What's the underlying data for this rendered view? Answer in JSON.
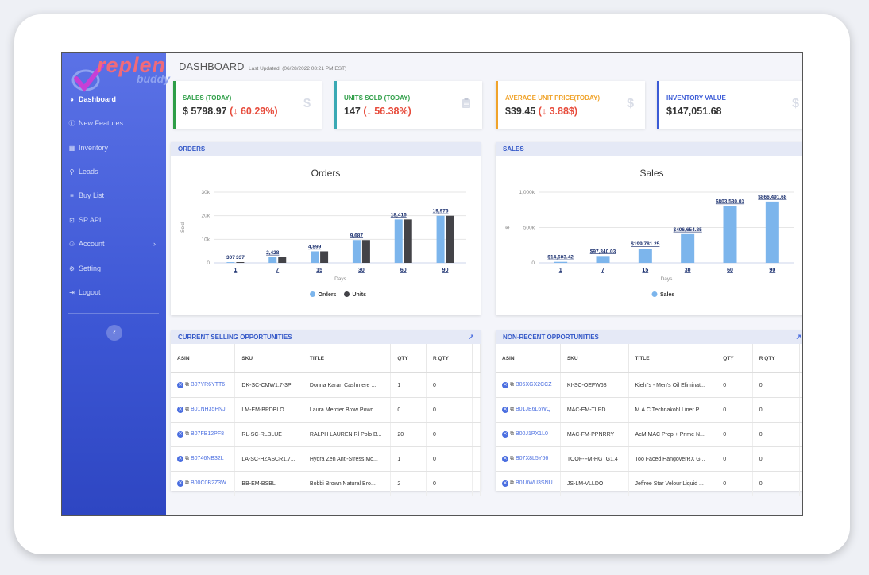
{
  "brand": {
    "logo_text": "replen",
    "logo_sub": "buddy"
  },
  "sidebar": {
    "items": [
      {
        "label": "Dashboard",
        "icon": "dashboard-icon"
      },
      {
        "label": "New Features",
        "icon": "info-icon"
      },
      {
        "label": "Inventory",
        "icon": "inventory-icon"
      },
      {
        "label": "Leads",
        "icon": "location-pin-icon"
      },
      {
        "label": "Buy List",
        "icon": "cart-icon"
      },
      {
        "label": "SP API",
        "icon": "lock-icon"
      },
      {
        "label": "Account",
        "icon": "user-icon"
      },
      {
        "label": "Setting",
        "icon": "gear-icon"
      },
      {
        "label": "Logout",
        "icon": "logout-icon"
      }
    ],
    "collapse_glyph": "‹"
  },
  "header": {
    "title": "DASHBOARD",
    "updated": "Last Updated: (06/28/2022 08:21 PM EST)"
  },
  "kpis": [
    {
      "label": "SALES (TODAY)",
      "value": "$ 5798.97",
      "change": "(↓ 60.29%)",
      "color": "#2e9e47",
      "icon": "$"
    },
    {
      "label": "UNITS SOLD (TODAY)",
      "value": "147",
      "change": "(↓ 56.38%)",
      "color": "#3aa9b4",
      "icon": "clipboard-icon"
    },
    {
      "label": "AVERAGE UNIT PRICE(TODAY)",
      "value": "$39.45",
      "change": "(↓ 3.88$)",
      "color": "#f0a32a",
      "icon": "$"
    },
    {
      "label": "INVENTORY VALUE",
      "value": "$147,051.68",
      "change": "",
      "color": "#3b5bd6",
      "icon": "$"
    }
  ],
  "orders_card": {
    "header": "ORDERS"
  },
  "sales_card": {
    "header": "SALES"
  },
  "chart_data": [
    {
      "type": "bar",
      "title": "Orders",
      "xlabel": "Days",
      "ylabel": "Sold",
      "categories": [
        "1",
        "7",
        "15",
        "30",
        "60",
        "90"
      ],
      "ylim": [
        0,
        30000
      ],
      "yticks": [
        "0",
        "10k",
        "20k",
        "30k"
      ],
      "series": [
        {
          "name": "Orders",
          "color": "#7cb5ec",
          "values": [
            307,
            2428,
            4899,
            9687,
            18416,
            19976
          ],
          "labels": [
            "307",
            "2,428",
            "4,899",
            "9,687",
            "18,416",
            "19,976"
          ]
        },
        {
          "name": "Units",
          "color": "#434348",
          "values": [
            337,
            2428,
            4899,
            9687,
            18416,
            19976
          ],
          "labels": [
            "337",
            "",
            "",
            "",
            "",
            ""
          ]
        }
      ],
      "legend": "bottom"
    },
    {
      "type": "bar",
      "title": "Sales",
      "xlabel": "Days",
      "ylabel": "$",
      "categories": [
        "1",
        "7",
        "15",
        "30",
        "60",
        "90"
      ],
      "ylim": [
        0,
        1000000
      ],
      "yticks": [
        "0",
        "500k",
        "1,000k"
      ],
      "series": [
        {
          "name": "Sales",
          "color": "#7cb5ec",
          "values": [
            14603.42,
            97340.03,
            199781.25,
            406654.85,
            803530.03,
            866491.68
          ],
          "labels": [
            "$14,603.42",
            "$97,340.03",
            "$199,781.25",
            "$406,654.85",
            "$803,530.03",
            "$866,491.68"
          ]
        }
      ],
      "legend": "bottom"
    }
  ],
  "current_table": {
    "header": "CURRENT SELLING OPPORTUNITIES",
    "columns": [
      "ASIN",
      "SKU",
      "TITLE",
      "QTY",
      "R QTY"
    ],
    "rows": [
      [
        "B07YR6YTT6",
        "DK-SC-CMW1.7-3P",
        "Donna Karan Cashmere ...",
        "1",
        "0"
      ],
      [
        "B01NH35PNJ",
        "LM-EM-BPDBLO",
        "Laura Mercier Brow Powd...",
        "0",
        "0"
      ],
      [
        "B07FB12PF8",
        "RL-SC-RLBLUE",
        "RALPH LAUREN Rl Polo B...",
        "20",
        "0"
      ],
      [
        "B0746NB32L",
        "LA-SC-HZASCR1.7...",
        "Hydra Zen Anti-Stress Mo...",
        "1",
        "0"
      ],
      [
        "B00C0B2Z3W",
        "BB-EM-BSBL",
        "Bobbi Brown Natural Bro...",
        "2",
        "0"
      ]
    ]
  },
  "nonrecent_table": {
    "header": "NON-RECENT OPPORTUNITIES",
    "columns": [
      "ASIN",
      "SKU",
      "TITLE",
      "QTY",
      "R QTY"
    ],
    "rows": [
      [
        "B06XGX2CCZ",
        "KI-SC-OEFW68",
        "Kiehl's - Men's Oil Eliminat...",
        "0",
        "0"
      ],
      [
        "B01JE6L6WQ",
        "MAC-EM-TLPD",
        "M.A.C Technakohl Liner P...",
        "0",
        "0"
      ],
      [
        "B00J1PX1L0",
        "MAC-FM-PPNRRY",
        "AcM MAC Prep + Prime N...",
        "0",
        "0"
      ],
      [
        "B07X8L5Y66",
        "TOOF-FM-HGTG1.4",
        "Too Faced HangoverRX G...",
        "0",
        "0"
      ],
      [
        "B018WU3SNU",
        "JS-LM-VLLDO",
        "Jeffree Star Velour Liquid ...",
        "0",
        "0"
      ]
    ]
  }
}
